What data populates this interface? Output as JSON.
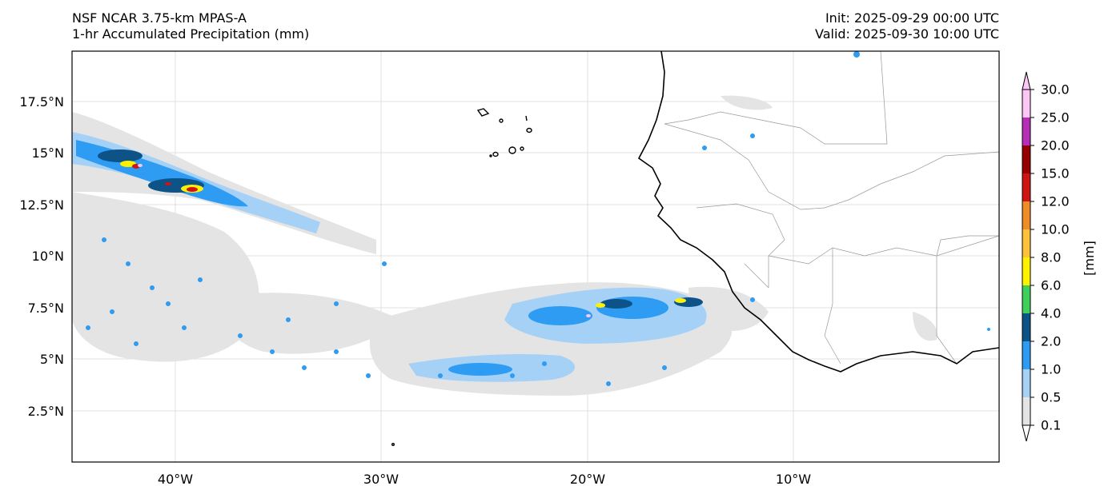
{
  "header": {
    "model": "NSF NCAR 3.75-km MPAS-A",
    "field": "1-hr Accumulated Precipitation (mm)",
    "init": "Init: 2025-09-29 00:00 UTC",
    "valid": "Valid: 2025-09-30 10:00 UTC"
  },
  "map": {
    "lat_ticks": [
      "17.5°N",
      "15°N",
      "12.5°N",
      "10°N",
      "7.5°N",
      "5°N",
      "2.5°N"
    ],
    "lon_ticks": [
      "40°W",
      "30°W",
      "20°W",
      "10°W"
    ],
    "gridlines": true,
    "coastline_color": "#000000",
    "border_color": "#888888"
  },
  "colorbar": {
    "unit_label": "[mm]",
    "levels": [
      "0.1",
      "0.5",
      "1.0",
      "2.0",
      "4.0",
      "6.0",
      "8.0",
      "10.0",
      "12.0",
      "15.0",
      "20.0",
      "25.0",
      "30.0"
    ],
    "colors": [
      "#e4e4e4",
      "#a6d1f7",
      "#2d9cf2",
      "#0d5387",
      "#3fcf5b",
      "#fff200",
      "#fcc23a",
      "#ee8c28",
      "#cf1414",
      "#960000",
      "#b52eb5",
      "#fcc6f5"
    ]
  }
}
